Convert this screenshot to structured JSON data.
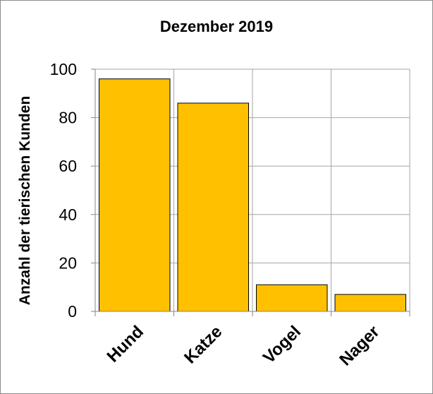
{
  "chart_data": {
    "type": "bar",
    "title": "Dezember 2019",
    "xlabel": "",
    "ylabel": "Anzahl der tierischen Kunden",
    "categories": [
      "Hund",
      "Katze",
      "Vogel",
      "Nager"
    ],
    "values": [
      96,
      86,
      11,
      7
    ],
    "ylim": [
      0,
      100
    ],
    "yticks": [
      0,
      20,
      40,
      60,
      80,
      100
    ],
    "grid": true,
    "legend": "none",
    "colors": {
      "bar_fill": "#ffc000",
      "bar_stroke": "#000000",
      "grid": "#a6a6a6",
      "axis": "#868686"
    }
  }
}
